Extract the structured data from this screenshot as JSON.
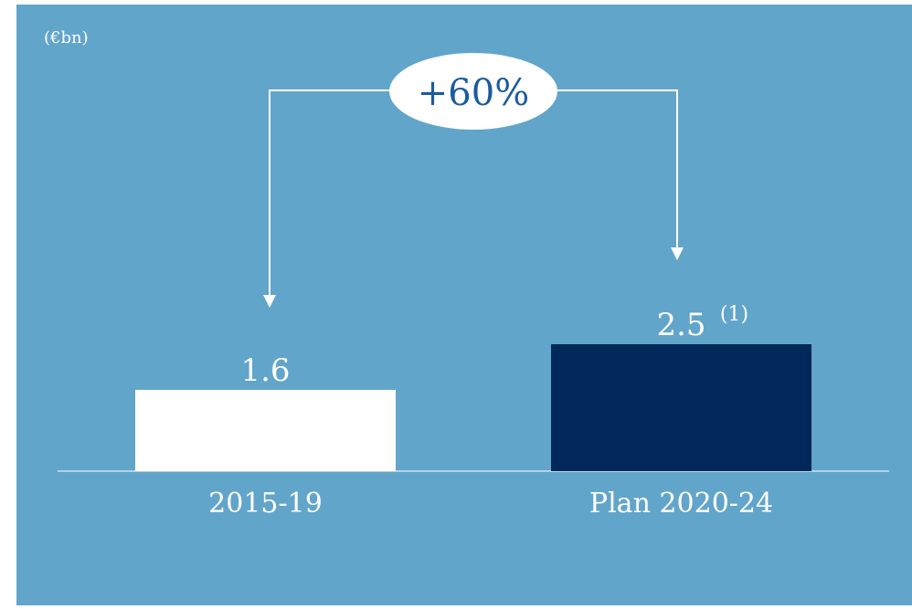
{
  "chart_data": {
    "type": "bar",
    "unit_label": "(€bn)",
    "categories": [
      "2015-19",
      "Plan 2020-24"
    ],
    "values": [
      1.6,
      2.5
    ],
    "value_labels": [
      "1.6",
      "2.5"
    ],
    "value_footnote": [
      "",
      "(1)"
    ],
    "bar_colors": [
      "#ffffff",
      "#00285a"
    ],
    "change_label": "+60%",
    "title": "",
    "xlabel": "",
    "ylabel": "",
    "ylim": [
      0,
      3.2
    ],
    "grid": false
  },
  "colors": {
    "background": "#62a5cb",
    "bubble": "#ffffff",
    "bubble_text": "#1a5c9e",
    "text": "#ffffff"
  }
}
